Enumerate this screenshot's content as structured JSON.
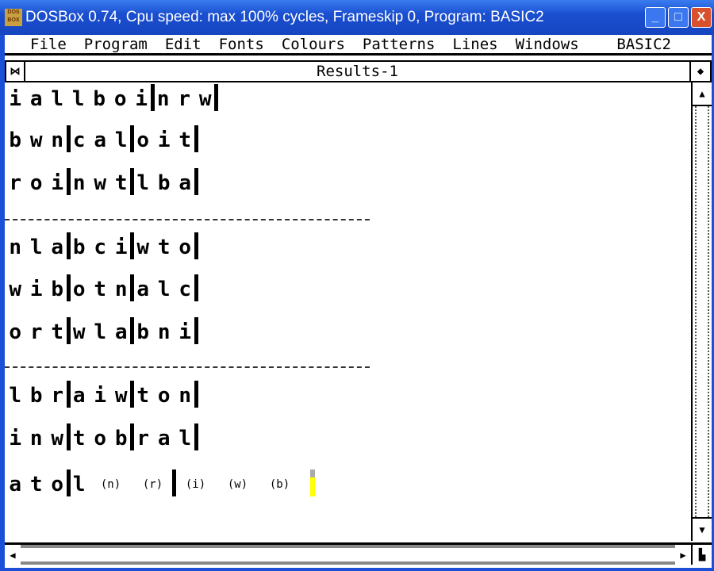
{
  "window": {
    "title": "DOSBox 0.74, Cpu speed: max 100% cycles, Frameskip  0, Program:   BASIC2",
    "icon_text": "DOS BOX",
    "minimize": "_",
    "maximize": "□",
    "close": "X"
  },
  "menu": {
    "items": [
      "File",
      "Program",
      "Edit",
      "Fonts",
      "Colours",
      "Patterns",
      "Lines",
      "Windows"
    ],
    "right": "BASIC2"
  },
  "results_window": {
    "title": "Results-1"
  },
  "rows": [
    [
      "i",
      "a",
      "l",
      "l",
      "b",
      "o",
      "i",
      "|",
      "n",
      "r",
      "w",
      "|"
    ],
    [
      "b",
      "w",
      "n",
      "|",
      "c",
      "a",
      "l",
      "|",
      "o",
      "i",
      "t",
      "|"
    ],
    [
      "r",
      "o",
      "i",
      "|",
      "n",
      "w",
      "t",
      "|",
      "l",
      "b",
      "a",
      "|"
    ],
    [
      "n",
      "l",
      "a",
      "|",
      "b",
      "c",
      "i",
      "|",
      "w",
      "t",
      "o",
      "|"
    ],
    [
      "w",
      "i",
      "b",
      "|",
      "o",
      "t",
      "n",
      "|",
      "a",
      "l",
      "c",
      "|"
    ],
    [
      "o",
      "r",
      "t",
      "|",
      "w",
      "l",
      "a",
      "|",
      "b",
      "n",
      "i",
      "|"
    ],
    [
      "l",
      "b",
      "r",
      "|",
      "a",
      "i",
      "w",
      "|",
      "t",
      "o",
      "n",
      "|"
    ],
    [
      "i",
      "n",
      "w",
      "|",
      "t",
      "o",
      "b",
      "|",
      "r",
      "a",
      "l",
      "|"
    ],
    [
      "a",
      "t",
      "o",
      "|",
      "l",
      "(n)",
      "(r)",
      "|",
      "(i)",
      "(w)",
      "(b)"
    ]
  ],
  "cursor_color": "#ffff00"
}
